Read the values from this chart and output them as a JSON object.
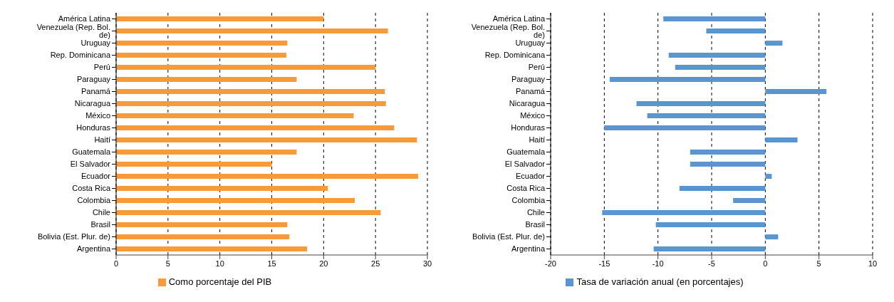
{
  "chart_data": [
    {
      "type": "bar",
      "orientation": "horizontal",
      "categories": [
        "América Latina",
        "Venezuela (Rep. Bol. de)",
        "Uruguay",
        "Rep. Dominicana",
        "Perú",
        "Paraguay",
        "Panamá",
        "Nicaragua",
        "México",
        "Honduras",
        "Haití",
        "Guatemala",
        "El Salvador",
        "Ecuador",
        "Costa Rica",
        "Colombia",
        "Chile",
        "Brasil",
        "Bolivia (Est. Plur. de)",
        "Argentina"
      ],
      "series": [
        {
          "name": "Como porcentaje del PIB",
          "color": "#f79a3a",
          "values": [
            20.0,
            26.2,
            16.5,
            16.4,
            25.0,
            17.4,
            25.9,
            26.0,
            22.9,
            26.8,
            29.0,
            17.4,
            15.0,
            29.1,
            20.4,
            23.0,
            25.5,
            16.5,
            16.7,
            18.4
          ]
        }
      ],
      "xlim": [
        0,
        30
      ],
      "xticks": [
        0,
        5,
        10,
        15,
        20,
        25,
        30
      ],
      "grid": "x",
      "legend": "bottom"
    },
    {
      "type": "bar",
      "orientation": "horizontal",
      "categories": [
        "América Latina",
        "Venezuela (Rep. Bol. de)",
        "Uruguay",
        "Rep. Dominicana",
        "Perú",
        "Paraguay",
        "Panamá",
        "Nicaragua",
        "México",
        "Honduras",
        "Haití",
        "Guatemala",
        "El Salvador",
        "Ecuador",
        "Costa Rica",
        "Colombia",
        "Chile",
        "Brasil",
        "Bolivia (Est. Plur. de)",
        "Argentina"
      ],
      "series": [
        {
          "name": "Tasa de variación anual (en porcentajes)",
          "color": "#5b95d0",
          "values": [
            -9.5,
            -5.5,
            1.6,
            -9.0,
            -8.4,
            -14.5,
            5.7,
            -12.0,
            -11.0,
            -15.0,
            3.0,
            -7.0,
            -7.0,
            0.6,
            -8.0,
            -3.0,
            -15.2,
            -10.2,
            1.2,
            -10.4
          ]
        }
      ],
      "xlim": [
        -20,
        10
      ],
      "xticks": [
        -20,
        -15,
        -10,
        -5,
        0,
        5,
        10
      ],
      "grid": "x",
      "legend": "bottom"
    }
  ]
}
